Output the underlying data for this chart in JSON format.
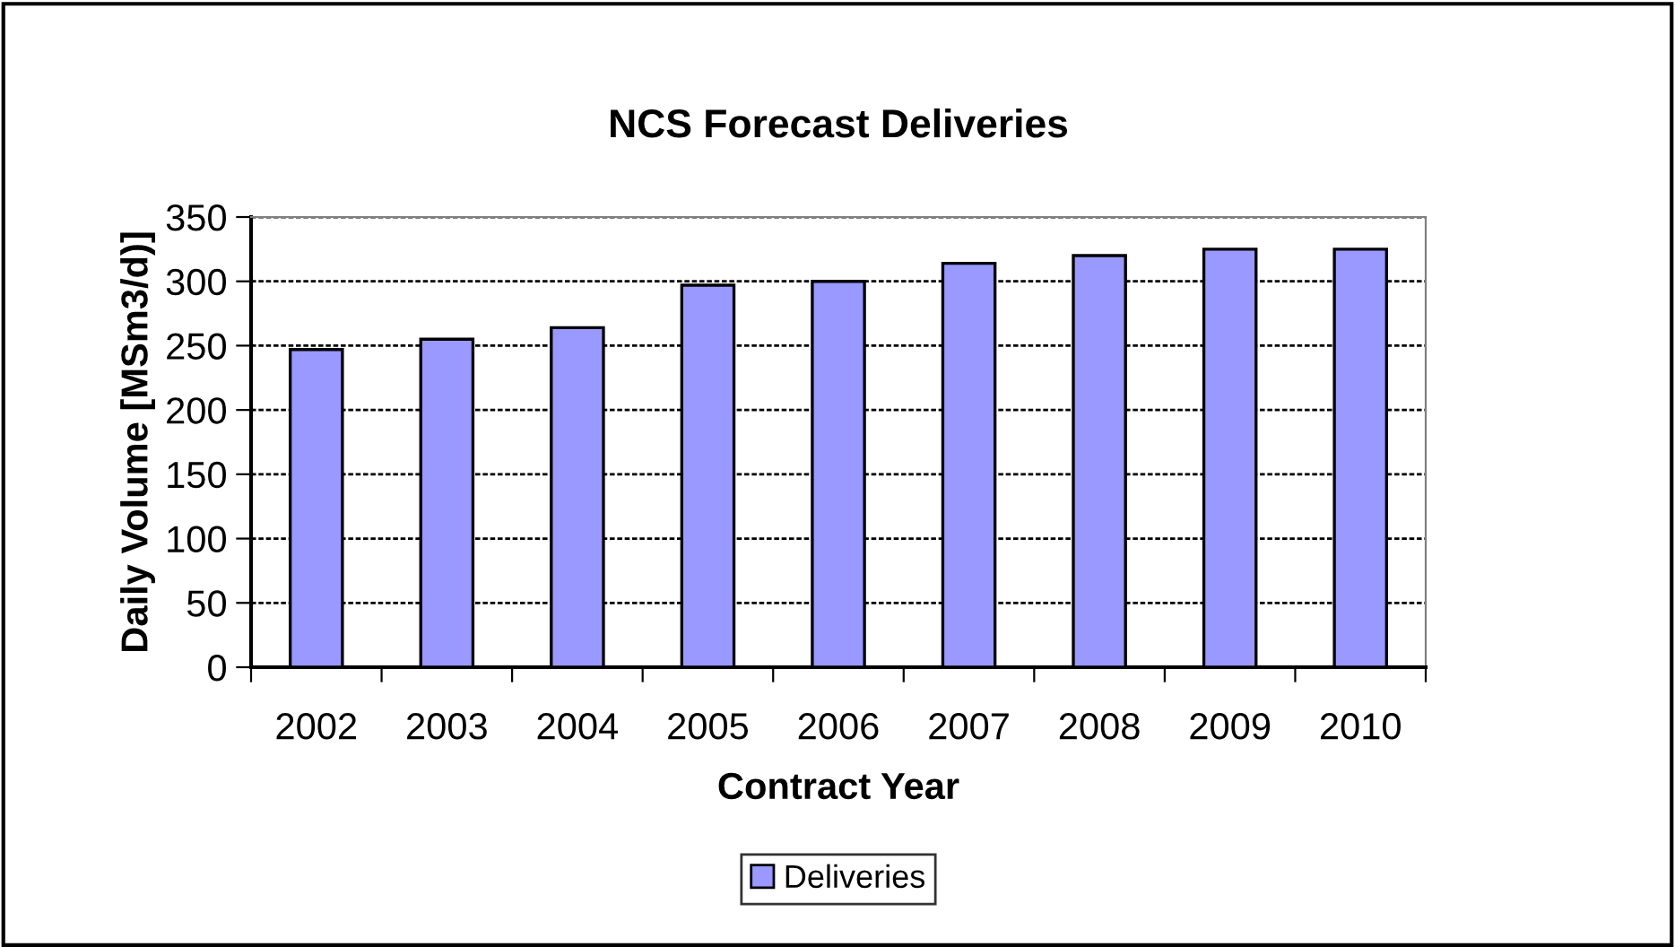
{
  "chart_data": {
    "type": "bar",
    "title": "NCS Forecast Deliveries",
    "xlabel": "Contract Year",
    "ylabel": "Daily Volume [MSm3/d)]",
    "categories": [
      "2002",
      "2003",
      "2004",
      "2005",
      "2006",
      "2007",
      "2008",
      "2009",
      "2010"
    ],
    "series": [
      {
        "name": "Deliveries",
        "color": "#9999ff",
        "values": [
          247,
          255,
          264,
          297,
          300,
          314,
          320,
          325,
          325
        ]
      }
    ],
    "ylim": [
      0,
      350
    ],
    "yticks": [
      0,
      50,
      100,
      150,
      200,
      250,
      300,
      350
    ],
    "grid": "y",
    "legend": "bottom"
  }
}
